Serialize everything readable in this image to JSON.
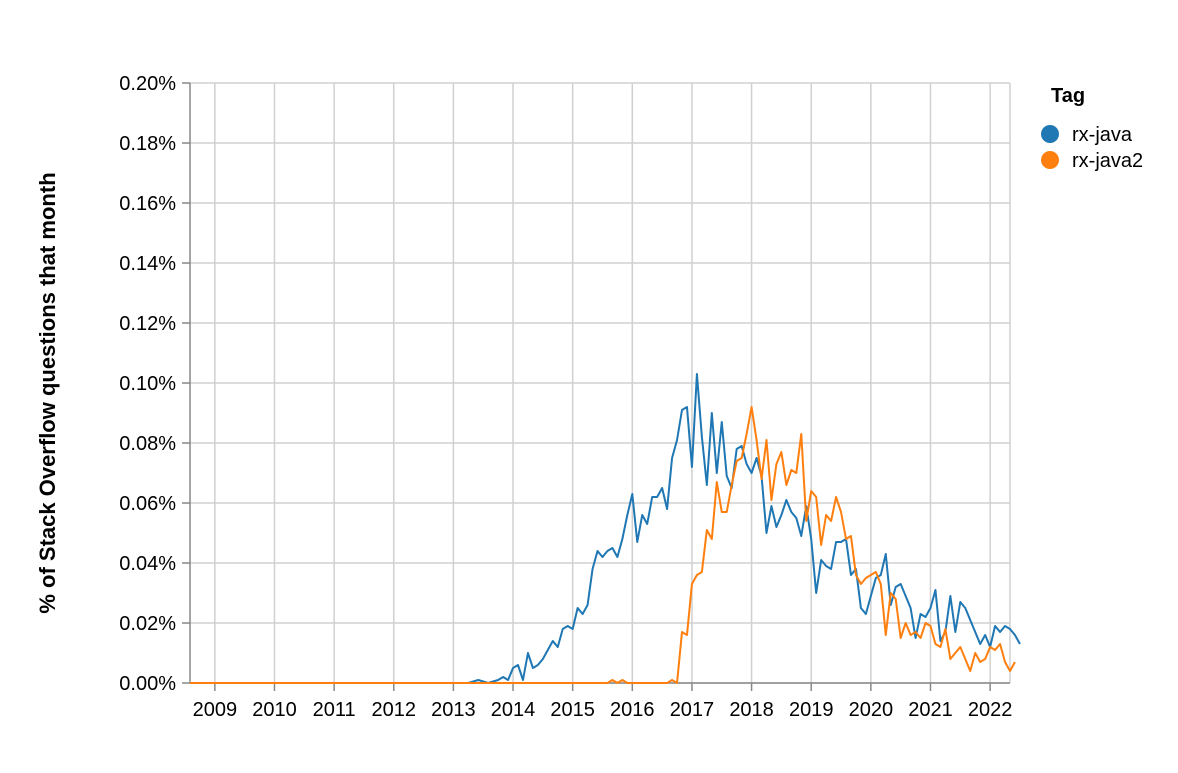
{
  "chart_data": {
    "type": "line",
    "title": "",
    "xlabel": "",
    "ylabel": "% of Stack Overflow questions that month",
    "ylim": [
      0,
      0.2
    ],
    "xlim": [
      "2008-08",
      "2022-05"
    ],
    "x_ticks": [
      "2009",
      "2010",
      "2011",
      "2012",
      "2013",
      "2014",
      "2015",
      "2016",
      "2017",
      "2018",
      "2019",
      "2020",
      "2021",
      "2022"
    ],
    "y_ticks": [
      "0.00%",
      "0.02%",
      "0.04%",
      "0.06%",
      "0.08%",
      "0.10%",
      "0.12%",
      "0.14%",
      "0.16%",
      "0.18%",
      "0.20%"
    ],
    "y_tick_values": [
      0,
      0.02,
      0.04,
      0.06,
      0.08,
      0.1,
      0.12,
      0.14,
      0.16,
      0.18,
      0.2
    ],
    "grid": true,
    "legend": {
      "title": "Tag",
      "position": "top-right"
    },
    "series": [
      {
        "name": "rx-java",
        "color": "#1f77b4",
        "points": [
          [
            "2008-08",
            0
          ],
          [
            "2013-01",
            0
          ],
          [
            "2013-04",
            0
          ],
          [
            "2013-06",
            0.001
          ],
          [
            "2013-08",
            0
          ],
          [
            "2013-10",
            0.001
          ],
          [
            "2013-11",
            0.002
          ],
          [
            "2013-12",
            0.001
          ],
          [
            "2014-01",
            0.005
          ],
          [
            "2014-02",
            0.006
          ],
          [
            "2014-03",
            0.001
          ],
          [
            "2014-04",
            0.01
          ],
          [
            "2014-05",
            0.005
          ],
          [
            "2014-06",
            0.006
          ],
          [
            "2014-07",
            0.008
          ],
          [
            "2014-08",
            0.011
          ],
          [
            "2014-09",
            0.014
          ],
          [
            "2014-10",
            0.012
          ],
          [
            "2014-11",
            0.018
          ],
          [
            "2014-12",
            0.019
          ],
          [
            "2015-01",
            0.018
          ],
          [
            "2015-02",
            0.025
          ],
          [
            "2015-03",
            0.023
          ],
          [
            "2015-04",
            0.026
          ],
          [
            "2015-05",
            0.038
          ],
          [
            "2015-06",
            0.044
          ],
          [
            "2015-07",
            0.042
          ],
          [
            "2015-08",
            0.044
          ],
          [
            "2015-09",
            0.045
          ],
          [
            "2015-10",
            0.042
          ],
          [
            "2015-11",
            0.048
          ],
          [
            "2015-12",
            0.056
          ],
          [
            "2016-01",
            0.063
          ],
          [
            "2016-02",
            0.047
          ],
          [
            "2016-03",
            0.056
          ],
          [
            "2016-04",
            0.053
          ],
          [
            "2016-05",
            0.062
          ],
          [
            "2016-06",
            0.062
          ],
          [
            "2016-07",
            0.065
          ],
          [
            "2016-08",
            0.058
          ],
          [
            "2016-09",
            0.075
          ],
          [
            "2016-10",
            0.081
          ],
          [
            "2016-11",
            0.091
          ],
          [
            "2016-12",
            0.092
          ],
          [
            "2017-01",
            0.072
          ],
          [
            "2017-02",
            0.103
          ],
          [
            "2017-03",
            0.082
          ],
          [
            "2017-04",
            0.066
          ],
          [
            "2017-05",
            0.09
          ],
          [
            "2017-06",
            0.07
          ],
          [
            "2017-07",
            0.087
          ],
          [
            "2017-08",
            0.069
          ],
          [
            "2017-09",
            0.065
          ],
          [
            "2017-10",
            0.078
          ],
          [
            "2017-11",
            0.079
          ],
          [
            "2017-12",
            0.073
          ],
          [
            "2018-01",
            0.07
          ],
          [
            "2018-02",
            0.075
          ],
          [
            "2018-03",
            0.069
          ],
          [
            "2018-04",
            0.05
          ],
          [
            "2018-05",
            0.059
          ],
          [
            "2018-06",
            0.052
          ],
          [
            "2018-07",
            0.056
          ],
          [
            "2018-08",
            0.061
          ],
          [
            "2018-09",
            0.057
          ],
          [
            "2018-10",
            0.055
          ],
          [
            "2018-11",
            0.049
          ],
          [
            "2018-12",
            0.059
          ],
          [
            "2019-01",
            0.048
          ],
          [
            "2019-02",
            0.03
          ],
          [
            "2019-03",
            0.041
          ],
          [
            "2019-04",
            0.039
          ],
          [
            "2019-05",
            0.038
          ],
          [
            "2019-06",
            0.047
          ],
          [
            "2019-07",
            0.047
          ],
          [
            "2019-08",
            0.048
          ],
          [
            "2019-09",
            0.036
          ],
          [
            "2019-10",
            0.038
          ],
          [
            "2019-11",
            0.025
          ],
          [
            "2019-12",
            0.023
          ],
          [
            "2020-01",
            0.029
          ],
          [
            "2020-02",
            0.035
          ],
          [
            "2020-03",
            0.036
          ],
          [
            "2020-04",
            0.043
          ],
          [
            "2020-05",
            0.026
          ],
          [
            "2020-06",
            0.032
          ],
          [
            "2020-07",
            0.033
          ],
          [
            "2020-08",
            0.029
          ],
          [
            "2020-09",
            0.025
          ],
          [
            "2020-10",
            0.015
          ],
          [
            "2020-11",
            0.023
          ],
          [
            "2020-12",
            0.022
          ],
          [
            "2021-01",
            0.025
          ],
          [
            "2021-02",
            0.031
          ],
          [
            "2021-03",
            0.014
          ],
          [
            "2021-04",
            0.017
          ],
          [
            "2021-05",
            0.029
          ],
          [
            "2021-06",
            0.017
          ],
          [
            "2021-07",
            0.027
          ],
          [
            "2021-08",
            0.025
          ],
          [
            "2021-09",
            0.021
          ],
          [
            "2021-10",
            0.017
          ],
          [
            "2021-11",
            0.013
          ],
          [
            "2021-12",
            0.016
          ],
          [
            "2022-01",
            0.012
          ],
          [
            "2022-02",
            0.019
          ],
          [
            "2022-03",
            0.017
          ],
          [
            "2022-04",
            0.019
          ],
          [
            "2022-05",
            0.018
          ],
          [
            "2022-06",
            0.016
          ],
          [
            "2022-07",
            0.013
          ]
        ]
      },
      {
        "name": "rx-java2",
        "color": "#ff7f0e",
        "points": [
          [
            "2008-08",
            0
          ],
          [
            "2015-08",
            0
          ],
          [
            "2015-09",
            0.001
          ],
          [
            "2015-10",
            0
          ],
          [
            "2015-11",
            0.001
          ],
          [
            "2015-12",
            0
          ],
          [
            "2016-08",
            0
          ],
          [
            "2016-09",
            0.001
          ],
          [
            "2016-10",
            0
          ],
          [
            "2016-11",
            0.017
          ],
          [
            "2016-12",
            0.016
          ],
          [
            "2017-01",
            0.033
          ],
          [
            "2017-02",
            0.036
          ],
          [
            "2017-03",
            0.037
          ],
          [
            "2017-04",
            0.051
          ],
          [
            "2017-05",
            0.048
          ],
          [
            "2017-06",
            0.067
          ],
          [
            "2017-07",
            0.057
          ],
          [
            "2017-08",
            0.057
          ],
          [
            "2017-09",
            0.066
          ],
          [
            "2017-10",
            0.074
          ],
          [
            "2017-11",
            0.075
          ],
          [
            "2017-12",
            0.083
          ],
          [
            "2018-01",
            0.092
          ],
          [
            "2018-02",
            0.081
          ],
          [
            "2018-03",
            0.068
          ],
          [
            "2018-04",
            0.081
          ],
          [
            "2018-05",
            0.061
          ],
          [
            "2018-06",
            0.073
          ],
          [
            "2018-07",
            0.077
          ],
          [
            "2018-08",
            0.066
          ],
          [
            "2018-09",
            0.071
          ],
          [
            "2018-10",
            0.07
          ],
          [
            "2018-11",
            0.083
          ],
          [
            "2018-12",
            0.054
          ],
          [
            "2019-01",
            0.064
          ],
          [
            "2019-02",
            0.062
          ],
          [
            "2019-03",
            0.046
          ],
          [
            "2019-04",
            0.056
          ],
          [
            "2019-05",
            0.054
          ],
          [
            "2019-06",
            0.062
          ],
          [
            "2019-07",
            0.057
          ],
          [
            "2019-08",
            0.048
          ],
          [
            "2019-09",
            0.049
          ],
          [
            "2019-10",
            0.036
          ],
          [
            "2019-11",
            0.033
          ],
          [
            "2019-12",
            0.035
          ],
          [
            "2020-01",
            0.036
          ],
          [
            "2020-02",
            0.037
          ],
          [
            "2020-03",
            0.033
          ],
          [
            "2020-04",
            0.016
          ],
          [
            "2020-05",
            0.03
          ],
          [
            "2020-06",
            0.028
          ],
          [
            "2020-07",
            0.015
          ],
          [
            "2020-08",
            0.02
          ],
          [
            "2020-09",
            0.016
          ],
          [
            "2020-10",
            0.017
          ],
          [
            "2020-11",
            0.015
          ],
          [
            "2020-12",
            0.02
          ],
          [
            "2021-01",
            0.019
          ],
          [
            "2021-02",
            0.013
          ],
          [
            "2021-03",
            0.012
          ],
          [
            "2021-04",
            0.018
          ],
          [
            "2021-05",
            0.008
          ],
          [
            "2021-06",
            0.01
          ],
          [
            "2021-07",
            0.012
          ],
          [
            "2021-08",
            0.008
          ],
          [
            "2021-09",
            0.004
          ],
          [
            "2021-10",
            0.01
          ],
          [
            "2021-11",
            0.007
          ],
          [
            "2021-12",
            0.008
          ],
          [
            "2022-01",
            0.012
          ],
          [
            "2022-02",
            0.011
          ],
          [
            "2022-03",
            0.013
          ],
          [
            "2022-04",
            0.007
          ],
          [
            "2022-05",
            0.004
          ],
          [
            "2022-06",
            0.007
          ]
        ]
      }
    ]
  }
}
